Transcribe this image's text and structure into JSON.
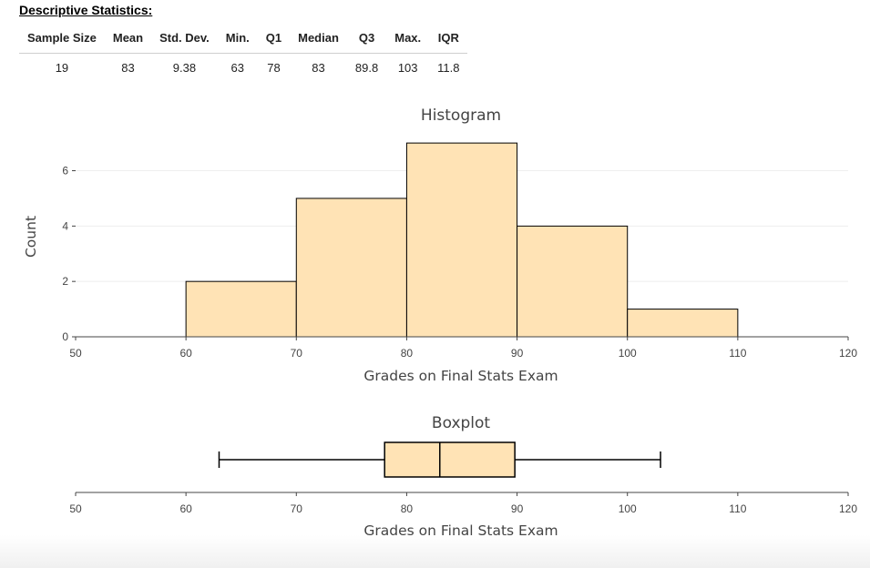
{
  "stats": {
    "heading": "Descriptive Statistics:",
    "headers": [
      "Sample Size",
      "Mean",
      "Std. Dev.",
      "Min.",
      "Q1",
      "Median",
      "Q3",
      "Max.",
      "IQR"
    ],
    "values": [
      "19",
      "83",
      "9.38",
      "63",
      "78",
      "83",
      "89.8",
      "103",
      "11.8"
    ]
  },
  "chart_data": [
    {
      "type": "bar",
      "title": "Histogram",
      "xlabel": "Grades on Final Stats Exam",
      "ylabel": "Count",
      "bins": [
        {
          "x0": 60,
          "x1": 70,
          "count": 2
        },
        {
          "x0": 70,
          "x1": 80,
          "count": 5
        },
        {
          "x0": 80,
          "x1": 90,
          "count": 7
        },
        {
          "x0": 90,
          "x1": 100,
          "count": 4
        },
        {
          "x0": 100,
          "x1": 110,
          "count": 1
        }
      ],
      "xlim": [
        50,
        120
      ],
      "ylim": [
        0,
        7.3
      ],
      "xticks": [
        50,
        60,
        70,
        80,
        90,
        100,
        110,
        120
      ],
      "yticks": [
        0,
        2,
        4,
        6
      ],
      "fill": "#ffe3b5",
      "stroke": "#000000",
      "grid": true
    },
    {
      "type": "boxplot",
      "title": "Boxplot",
      "xlabel": "Grades on Final Stats Exam",
      "min": 63,
      "q1": 78,
      "median": 83,
      "q3": 89.8,
      "max": 103,
      "xlim": [
        50,
        120
      ],
      "xticks": [
        50,
        60,
        70,
        80,
        90,
        100,
        110,
        120
      ],
      "fill": "#ffe3b5",
      "stroke": "#000000"
    }
  ]
}
